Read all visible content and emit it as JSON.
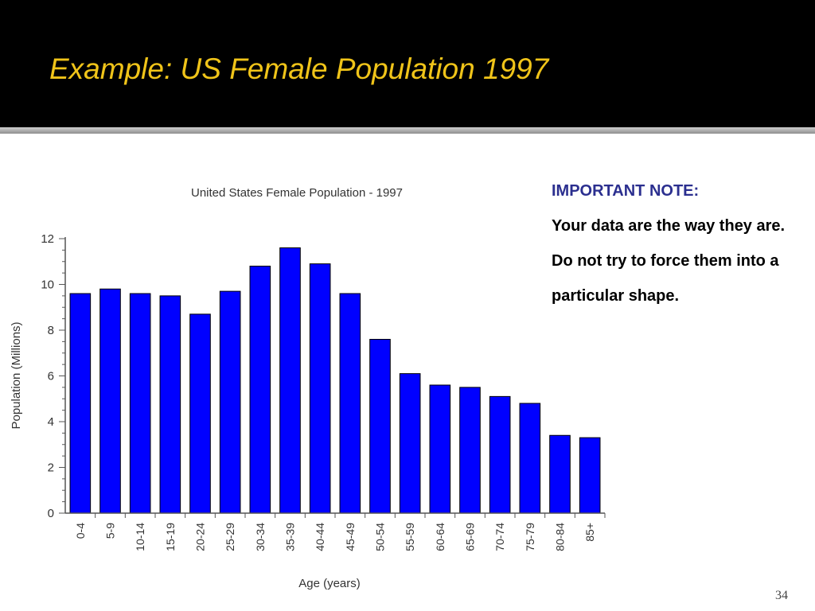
{
  "slide": {
    "title": "Example: US Female Population 1997",
    "note_heading": "IMPORTANT NOTE:",
    "note_body": "Your data are the way they are. Do not try to force them into a particular shape.",
    "page_number": "34"
  },
  "colors": {
    "title": "#f0c419",
    "bar": "#0000ff",
    "note_heading": "#2b2f8f"
  },
  "chart_data": {
    "type": "bar",
    "title": "United States Female Population - 1997",
    "xlabel": "Age (years)",
    "ylabel": "Population (Millions)",
    "ylim": [
      0,
      12
    ],
    "yticks": [
      0,
      2,
      4,
      6,
      8,
      10,
      12
    ],
    "categories": [
      "0-4",
      "5-9",
      "10-14",
      "15-19",
      "20-24",
      "25-29",
      "30-34",
      "35-39",
      "40-44",
      "45-49",
      "50-54",
      "55-59",
      "60-64",
      "65-69",
      "70-74",
      "75-79",
      "80-84",
      "85+"
    ],
    "values": [
      9.6,
      9.8,
      9.6,
      9.5,
      8.7,
      9.7,
      10.8,
      11.6,
      10.9,
      9.6,
      7.6,
      6.1,
      5.6,
      5.5,
      5.1,
      4.8,
      3.4,
      3.3
    ],
    "grid": false
  }
}
